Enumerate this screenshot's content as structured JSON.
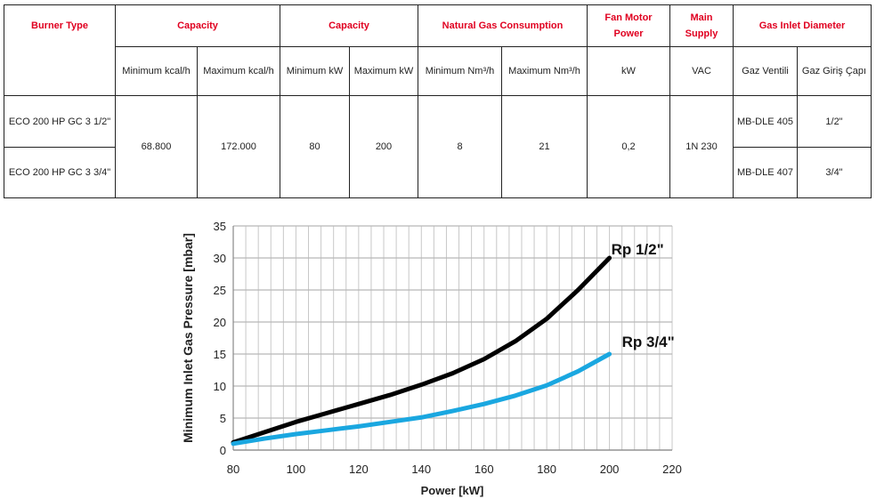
{
  "table": {
    "headers": {
      "burner_type": "Burner Type",
      "capacity_kcal": "Capacity",
      "capacity_kw": "Capacity",
      "gas_consumption": "Natural Gas Consumption",
      "fan_power": "Fan Motor Power",
      "main_supply": "Main Supply",
      "gas_inlet": "Gas Inlet Diameter"
    },
    "subheaders": [
      "Minimum kcal/h",
      "Maximum kcal/h",
      "Minimum kW",
      "Maximum kW",
      "Minimum Nm³/h",
      "Maximum Nm³/h",
      "kW",
      "VAC",
      "Gaz Ventili",
      "Gaz Giriş Çapı"
    ],
    "rows": [
      {
        "model": "ECO 200 HP GC 3 1/2\"",
        "valve": "MB-DLE 405",
        "inlet": "1/2\""
      },
      {
        "model": "ECO 200 HP GC 3 3/4\"",
        "valve": "MB-DLE 407",
        "inlet": "3/4\""
      }
    ],
    "shared": {
      "min_kcal": "68.800",
      "max_kcal": "172.000",
      "min_kw": "80",
      "max_kw": "200",
      "min_nm3": "8",
      "max_nm3": "21",
      "fan_kw": "0,2",
      "supply": "1N 230"
    }
  },
  "chart_data": {
    "type": "line",
    "title": "",
    "xlabel": "Power  [kW]",
    "ylabel": "Minimum Inlet Gas Pressure [mbar]",
    "xlim": [
      80,
      220
    ],
    "ylim": [
      0,
      35
    ],
    "xticks": [
      80,
      100,
      120,
      140,
      160,
      180,
      200,
      220
    ],
    "yticks": [
      0,
      5,
      10,
      15,
      20,
      25,
      30,
      35
    ],
    "grid": true,
    "x": [
      80,
      90,
      100,
      110,
      120,
      130,
      140,
      150,
      160,
      170,
      180,
      190,
      200
    ],
    "series": [
      {
        "name": "Rp 1/2\"",
        "color": "#000000",
        "values": [
          1.2,
          2.8,
          4.4,
          5.8,
          7.2,
          8.6,
          10.2,
          12.0,
          14.2,
          17.0,
          20.5,
          25.0,
          30.0
        ]
      },
      {
        "name": "Rp 3/4\"",
        "color": "#1aa7e0",
        "values": [
          1.0,
          1.8,
          2.5,
          3.1,
          3.7,
          4.4,
          5.1,
          6.1,
          7.2,
          8.5,
          10.1,
          12.3,
          15.0
        ]
      }
    ]
  }
}
